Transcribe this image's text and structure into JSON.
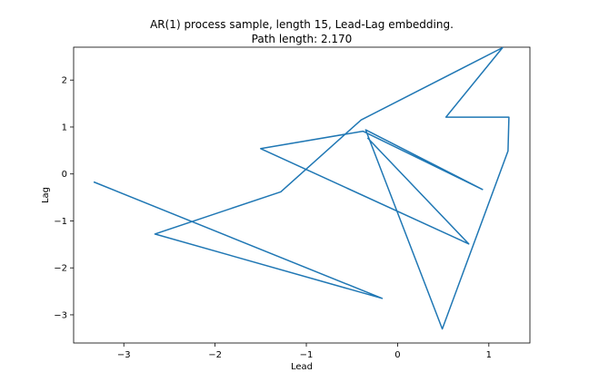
{
  "chart_data": {
    "type": "line",
    "title": "AR(1) process sample, length 15, Lead-Lag embedding.",
    "subtitle": "Path length: 2.170",
    "xlabel": "Lead",
    "ylabel": "Lag",
    "xlim": [
      -3.55,
      1.45
    ],
    "ylim": [
      -3.6,
      2.7
    ],
    "xticks": [
      -3,
      -2,
      -1,
      0,
      1
    ],
    "xtick_labels": [
      "−3",
      "−2",
      "−1",
      "0",
      "1"
    ],
    "yticks": [
      -3,
      -2,
      -1,
      0,
      1,
      2
    ],
    "ytick_labels": [
      "−3",
      "−2",
      "−1",
      "0",
      "1",
      "2"
    ],
    "grid": false,
    "legend": "none",
    "color": "#1f77b4",
    "series": [
      {
        "x": [
          -3.33,
          -0.17,
          -2.66,
          -1.28,
          -0.4,
          1.15,
          0.53,
          1.21,
          1.22,
          1.21,
          0.49,
          -0.35,
          0.93,
          -0.38,
          -1.5,
          0.78,
          -0.33
        ],
        "y": [
          -0.17,
          -2.65,
          -1.28,
          -0.38,
          1.15,
          2.69,
          1.21,
          1.21,
          1.21,
          0.49,
          -3.3,
          0.94,
          -0.33,
          0.91,
          0.54,
          -1.49,
          0.77
        ]
      }
    ]
  }
}
